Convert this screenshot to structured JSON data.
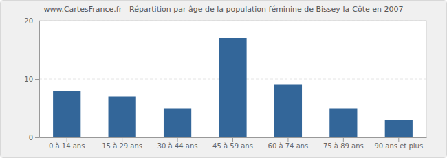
{
  "chart_data": {
    "type": "bar",
    "title": "www.CartesFrance.fr - Répartition par âge de la population féminine de Bissey-la-Côte en 2007",
    "categories": [
      "0 à 14 ans",
      "15 à 29 ans",
      "30 à 44 ans",
      "45 à 59 ans",
      "60 à 74 ans",
      "75 à 89 ans",
      "90 ans et plus"
    ],
    "values": [
      8,
      7,
      5,
      17,
      9,
      5,
      3
    ],
    "color": "#336699",
    "ylim": [
      0,
      20
    ],
    "yticks": [
      0,
      10,
      20
    ],
    "grid": true
  }
}
